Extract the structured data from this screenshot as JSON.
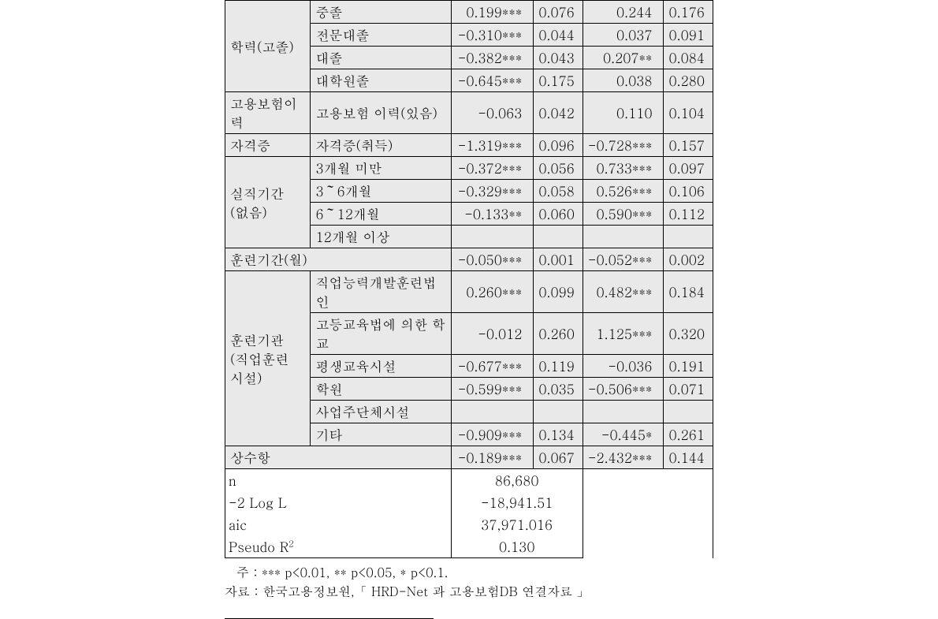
{
  "rows": {
    "edu_group_label": "학력(고졸)",
    "edu": [
      {
        "sub": "중졸",
        "a": "0.199***",
        "b": "0.076",
        "c": "0.244",
        "d": "0.176"
      },
      {
        "sub": "전문대졸",
        "a": "-0.310***",
        "b": "0.044",
        "c": "0.037",
        "d": "0.091"
      },
      {
        "sub": "대졸",
        "a": "-0.382***",
        "b": "0.043",
        "c": "0.207**",
        "d": "0.084"
      },
      {
        "sub": "대학원졸",
        "a": "-0.645***",
        "b": "0.175",
        "c": "0.038",
        "d": "0.280"
      }
    ],
    "insurance": {
      "lbl": "고용보험이력",
      "sub": "고용보험 이력(있음)",
      "a": "-0.063",
      "b": "0.042",
      "c": "0.110",
      "d": "0.104"
    },
    "license": {
      "lbl": "자격증",
      "sub": "자격증(취득)",
      "a": "-1.319***",
      "b": "0.096",
      "c": "-0.728***",
      "d": "0.157"
    },
    "unemp_group_label_l1": "실직기간",
    "unemp_group_label_l2": "(없음)",
    "unemp": [
      {
        "sub": "3개월 미만",
        "a": "-0.372***",
        "b": "0.056",
        "c": "0.733***",
        "d": "0.097"
      },
      {
        "sub": "3～6개월",
        "a": "-0.329***",
        "b": "0.058",
        "c": "0.526***",
        "d": "0.106"
      },
      {
        "sub": "6～12개월",
        "a": "-0.133**",
        "b": "0.060",
        "c": "0.590***",
        "d": "0.112"
      },
      {
        "sub": "12개월 이상",
        "a": "",
        "b": "",
        "c": "",
        "d": ""
      }
    ],
    "trainperiod": {
      "lbl": "훈련기간(월)",
      "a": "-0.050***",
      "b": "0.001",
      "c": "-0.052***",
      "d": "0.002"
    },
    "inst_group_label_l1": "훈련기관",
    "inst_group_label_l2": "(직업훈련",
    "inst_group_label_l3": "시설)",
    "inst": [
      {
        "sub": "직업능력개발훈련법인",
        "a": "0.260***",
        "b": "0.099",
        "c": "0.482***",
        "d": "0.184"
      },
      {
        "sub": "고등교육법에 의한 학교",
        "a": "-0.012",
        "b": "0.260",
        "c": "1.125***",
        "d": "0.320"
      },
      {
        "sub": "평생교육시설",
        "a": "-0.677***",
        "b": "0.119",
        "c": "-0.036",
        "d": "0.191"
      },
      {
        "sub": "학원",
        "a": "-0.599***",
        "b": "0.035",
        "c": "-0.506***",
        "d": "0.071"
      },
      {
        "sub": "사업주단체시설",
        "a": "",
        "b": "",
        "c": "",
        "d": ""
      },
      {
        "sub": "기타",
        "a": "-0.909***",
        "b": "0.134",
        "c": "-0.445*",
        "d": "0.261"
      }
    ],
    "constant": {
      "lbl": "상수항",
      "a": "-0.189***",
      "b": "0.067",
      "c": "-2.432***",
      "d": "0.144"
    }
  },
  "stats": {
    "n_lbl": "n",
    "n_val": "86,680",
    "ll_lbl": "-2 Log L",
    "ll_val": "-18,941.51",
    "aic_lbl": "aic",
    "aic_val": "37,971.016",
    "r2_lbl_pre": "Pseudo R",
    "r2_lbl_sup": "2",
    "r2_val": "0.130"
  },
  "notes": {
    "line1": "주 : *** p<0.01, ** p<0.05, * p<0.1.",
    "line2": "자료 : 한국고용정보원,「 HRD-Net 과 고용보험DB 연결자료 」"
  }
}
